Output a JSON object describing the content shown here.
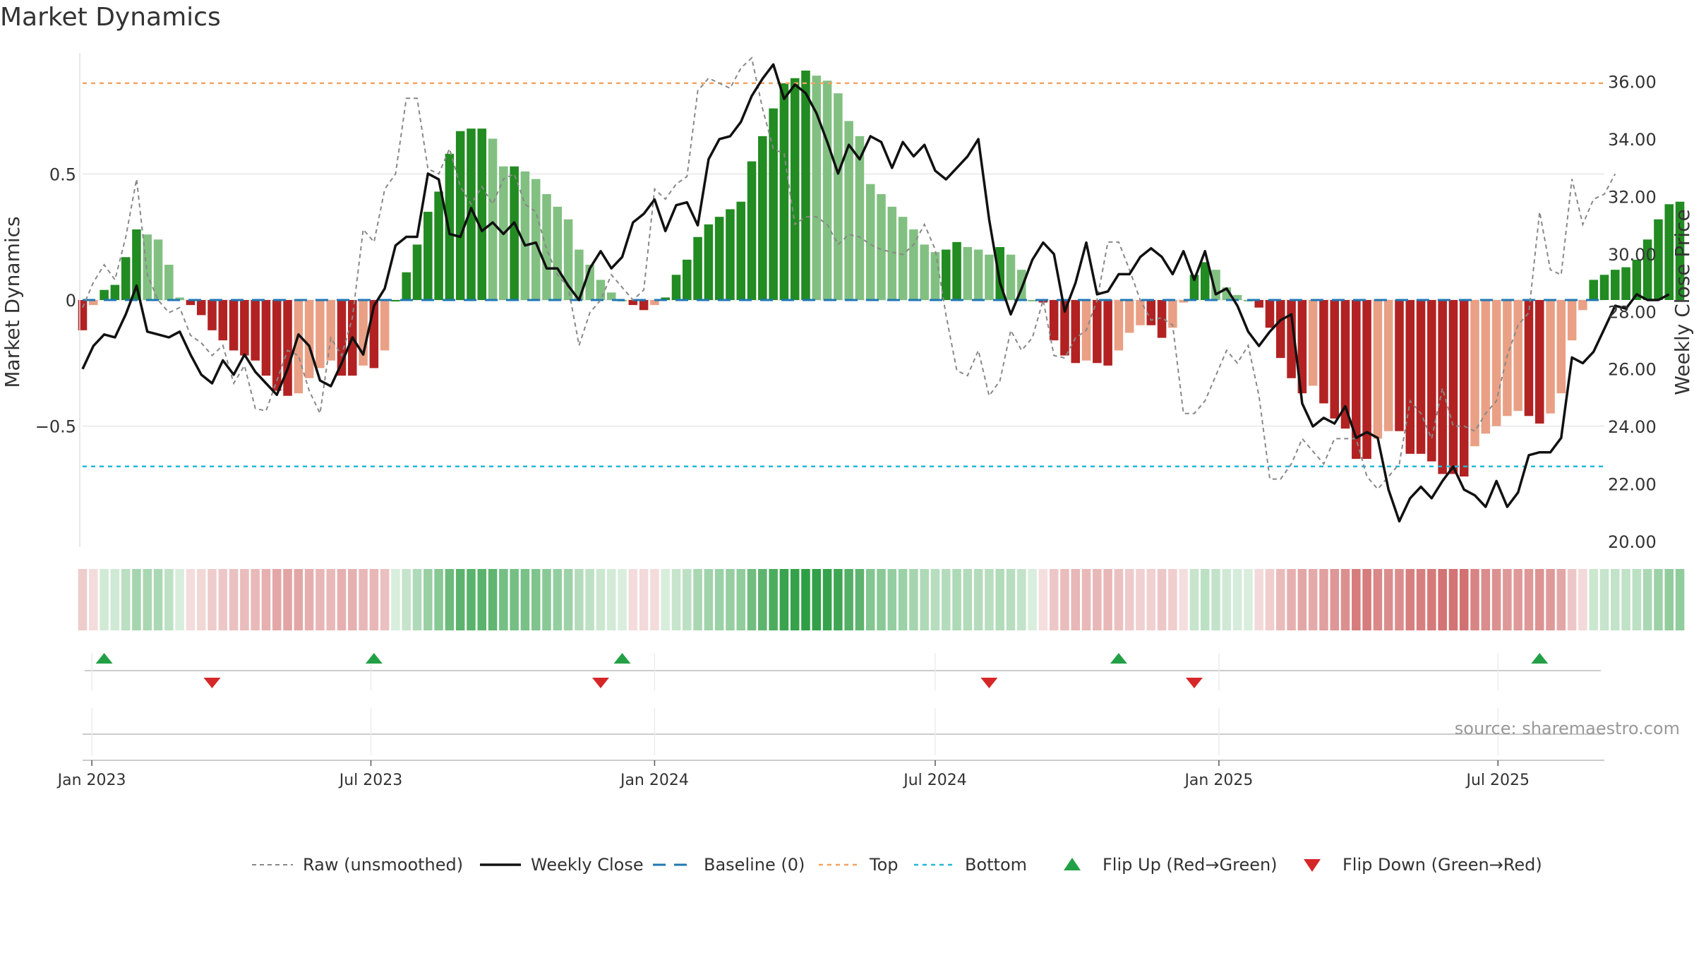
{
  "chart_data": {
    "type": "bar",
    "title": "Market Dynamics",
    "ylabel_left": "Market Dynamics",
    "ylabel_right": "Weekly Close Price",
    "left_ylim": [
      -0.98,
      0.98
    ],
    "right_ylim": [
      19.8,
      37.0
    ],
    "left_yticks": [
      {
        "v": 0.5,
        "label": "0.5"
      },
      {
        "v": 0,
        "label": "0"
      },
      {
        "v": -0.5,
        "label": "−0.5"
      }
    ],
    "right_yticks": [
      "20.00",
      "22.00",
      "24.00",
      "26.00",
      "28.00",
      "30.00",
      "32.00",
      "34.00",
      "36.00"
    ],
    "x_range": [
      "2022-12-26",
      "2025-09-08"
    ],
    "x_ticks": [
      {
        "date": "2023-01-01",
        "label": "Jan 2023"
      },
      {
        "date": "2023-07-01",
        "label": "Jul 2023"
      },
      {
        "date": "2024-01-01",
        "label": "Jan 2024"
      },
      {
        "date": "2024-07-01",
        "label": "Jul 2024"
      },
      {
        "date": "2025-01-01",
        "label": "Jan 2025"
      },
      {
        "date": "2025-07-01",
        "label": "Jul 2025"
      }
    ],
    "top_level": 0.86,
    "bottom_level": -0.66,
    "baseline": 0,
    "start_week": "2022-12-26",
    "dynamics": [
      -0.12,
      -0.02,
      0.04,
      0.06,
      0.17,
      0.28,
      0.26,
      0.24,
      0.14,
      0.01,
      -0.02,
      -0.06,
      -0.12,
      -0.16,
      -0.2,
      -0.22,
      -0.24,
      -0.3,
      -0.36,
      -0.38,
      -0.37,
      -0.31,
      -0.27,
      -0.24,
      -0.3,
      -0.3,
      -0.26,
      -0.27,
      -0.2,
      0.0,
      0.11,
      0.22,
      0.35,
      0.43,
      0.58,
      0.67,
      0.68,
      0.68,
      0.64,
      0.53,
      0.53,
      0.51,
      0.48,
      0.42,
      0.37,
      0.32,
      0.2,
      0.14,
      0.08,
      0.03,
      0.0,
      -0.02,
      -0.04,
      -0.02,
      0.01,
      0.1,
      0.16,
      0.25,
      0.3,
      0.33,
      0.36,
      0.39,
      0.55,
      0.65,
      0.76,
      0.86,
      0.88,
      0.91,
      0.89,
      0.87,
      0.82,
      0.71,
      0.65,
      0.46,
      0.42,
      0.37,
      0.33,
      0.28,
      0.22,
      0.19,
      0.2,
      0.23,
      0.21,
      0.2,
      0.18,
      0.21,
      0.18,
      0.12,
      0.0,
      -0.01,
      -0.16,
      -0.22,
      -0.25,
      -0.24,
      -0.25,
      -0.26,
      -0.2,
      -0.13,
      -0.1,
      -0.1,
      -0.15,
      -0.11,
      -0.01,
      0.1,
      0.15,
      0.12,
      0.05,
      0.02,
      0.0,
      -0.03,
      -0.11,
      -0.23,
      -0.31,
      -0.37,
      -0.34,
      -0.41,
      -0.47,
      -0.51,
      -0.63,
      -0.63,
      -0.55,
      -0.52,
      -0.52,
      -0.61,
      -0.61,
      -0.64,
      -0.69,
      -0.69,
      -0.7,
      -0.58,
      -0.53,
      -0.5,
      -0.46,
      -0.44,
      -0.46,
      -0.49,
      -0.45,
      -0.37,
      -0.16,
      -0.04,
      0.08,
      0.1,
      0.12,
      0.13,
      0.16,
      0.24,
      0.32,
      0.38,
      0.39
    ],
    "raw_unsmoothed": [
      -0.03,
      0.07,
      0.14,
      0.08,
      0.25,
      0.48,
      0.1,
      0.0,
      -0.05,
      -0.03,
      -0.14,
      -0.17,
      -0.22,
      -0.18,
      -0.33,
      -0.26,
      -0.43,
      -0.44,
      -0.32,
      -0.2,
      -0.22,
      -0.36,
      -0.45,
      -0.15,
      -0.22,
      -0.07,
      0.28,
      0.23,
      0.44,
      0.5,
      0.8,
      0.8,
      0.52,
      0.5,
      0.6,
      0.45,
      0.38,
      0.45,
      0.38,
      0.48,
      0.5,
      0.38,
      0.35,
      0.2,
      0.1,
      0.05,
      -0.18,
      -0.05,
      0.0,
      0.1,
      0.05,
      0.0,
      0.04,
      0.44,
      0.4,
      0.46,
      0.49,
      0.83,
      0.88,
      0.86,
      0.84,
      0.92,
      0.96,
      0.76,
      0.6,
      0.58,
      0.3,
      0.33,
      0.33,
      0.3,
      0.22,
      0.26,
      0.25,
      0.22,
      0.2,
      0.19,
      0.18,
      0.22,
      0.3,
      0.2,
      -0.06,
      -0.28,
      -0.3,
      -0.2,
      -0.38,
      -0.32,
      -0.12,
      -0.2,
      -0.15,
      0.0,
      -0.22,
      -0.23,
      -0.15,
      -0.12,
      0.0,
      0.23,
      0.23,
      0.12,
      0.0,
      -0.08,
      -0.07,
      -0.1,
      -0.45,
      -0.45,
      -0.4,
      -0.3,
      -0.2,
      -0.25,
      -0.18,
      -0.38,
      -0.71,
      -0.71,
      -0.65,
      -0.55,
      -0.6,
      -0.65,
      -0.55,
      -0.55,
      -0.55,
      -0.7,
      -0.75,
      -0.7,
      -0.65,
      -0.4,
      -0.45,
      -0.55,
      -0.35,
      -0.5,
      -0.5,
      -0.52,
      -0.45,
      -0.4,
      -0.22,
      -0.1,
      -0.05,
      0.35,
      0.12,
      0.1,
      0.48,
      0.3,
      0.4,
      0.42,
      0.5
    ],
    "weekly_close": [
      26.0,
      26.8,
      27.2,
      27.1,
      27.9,
      28.9,
      27.3,
      27.2,
      27.1,
      27.3,
      26.5,
      25.8,
      25.5,
      26.3,
      25.8,
      26.5,
      25.9,
      25.5,
      25.1,
      26.0,
      27.2,
      26.8,
      25.6,
      25.4,
      26.2,
      27.1,
      26.5,
      28.2,
      28.8,
      30.3,
      30.6,
      30.6,
      32.8,
      32.6,
      30.7,
      30.6,
      31.6,
      30.8,
      31.1,
      30.7,
      31.1,
      30.3,
      30.4,
      29.5,
      29.5,
      28.9,
      28.4,
      29.5,
      30.1,
      29.5,
      29.9,
      31.1,
      31.4,
      31.9,
      30.8,
      31.7,
      31.8,
      31.0,
      33.3,
      34.0,
      34.1,
      34.6,
      35.5,
      36.1,
      36.6,
      35.4,
      35.9,
      35.6,
      34.9,
      33.9,
      32.8,
      33.8,
      33.3,
      34.1,
      33.9,
      33.0,
      33.9,
      33.4,
      33.8,
      32.9,
      32.6,
      33.0,
      33.4,
      34.0,
      31.2,
      29.0,
      27.9,
      28.8,
      29.8,
      30.4,
      30.0,
      28.0,
      29.0,
      30.4,
      28.6,
      28.7,
      29.3,
      29.3,
      29.9,
      30.2,
      29.9,
      29.3,
      30.1,
      29.1,
      30.1,
      28.6,
      28.8,
      28.2,
      27.3,
      26.8,
      27.3,
      27.7,
      27.9,
      24.8,
      24.0,
      24.3,
      24.1,
      24.7,
      23.6,
      23.8,
      23.6,
      21.8,
      20.7,
      21.5,
      21.9,
      21.5,
      22.1,
      22.6,
      21.8,
      21.6,
      21.2,
      22.1,
      21.2,
      21.7,
      23.0,
      23.1,
      23.1,
      23.6,
      26.4,
      26.2,
      26.6,
      27.4,
      28.2,
      28.1,
      28.6,
      28.4,
      28.4,
      28.6
    ],
    "flips_up": [
      "2023-01-09",
      "2023-07-03",
      "2023-12-11",
      "2024-10-28",
      "2025-07-28"
    ],
    "flips_down": [
      "2023-03-20",
      "2023-11-27",
      "2024-08-05",
      "2024-12-16"
    ],
    "source": "source: sharemaestro.com",
    "legend_position": "bottom",
    "legend": [
      {
        "key": "raw",
        "label": "Raw (unsmoothed)"
      },
      {
        "key": "close",
        "label": "Weekly Close"
      },
      {
        "key": "baseline",
        "label": "Baseline (0)"
      },
      {
        "key": "top",
        "label": "Top"
      },
      {
        "key": "bottom",
        "label": "Bottom"
      },
      {
        "key": "flipup",
        "label": "Flip Up (Red→Green)"
      },
      {
        "key": "flipdown",
        "label": "Flip Down (Green→Red)"
      }
    ],
    "colors": {
      "green_strong": "#228b22",
      "green_light": "#82c082",
      "red_strong": "#b22222",
      "red_light": "#e9a085",
      "heat_green": "#2e9e44",
      "heat_red": "#c85050",
      "raw": "#888888",
      "close": "#111111",
      "baseline": "#1f77b4",
      "top": "#f4a261",
      "bottom": "#26b8d6",
      "flip_up": "#23a046",
      "flip_down": "#d62728",
      "grid": "#e6e6e6",
      "source": "#999999"
    }
  }
}
